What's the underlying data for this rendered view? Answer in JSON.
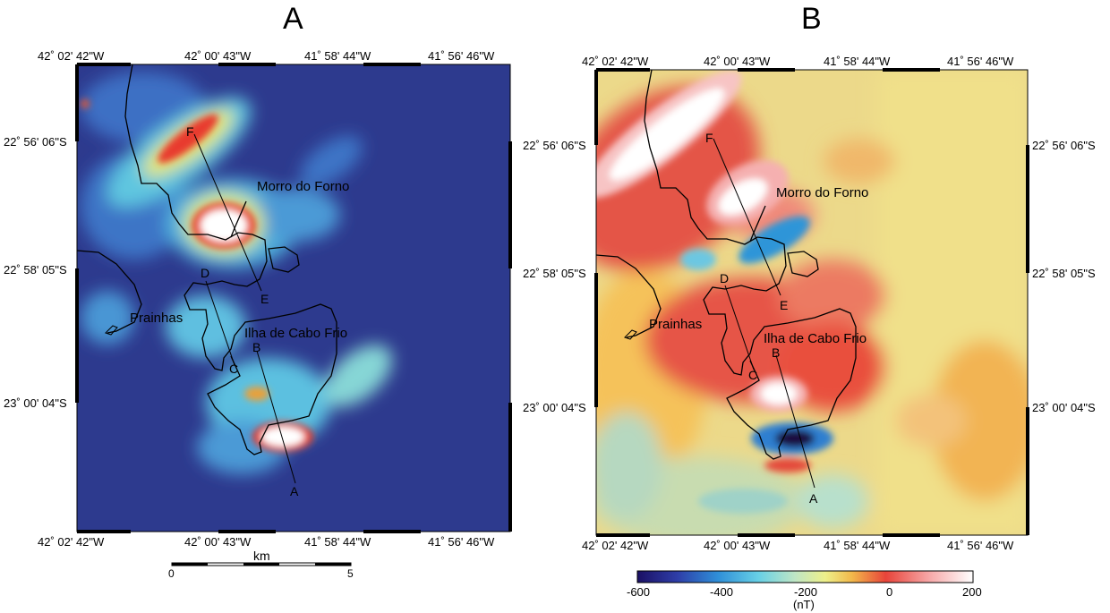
{
  "panel_a": {
    "title": "A",
    "lon_top": [
      "42˚ 02' 42\"W",
      "42˚ 00' 43\"W",
      "41˚ 58' 44\"W",
      "41˚ 56' 46\"W"
    ],
    "lon_bottom": [
      "42˚ 02' 42\"W",
      "42˚ 00' 43\"W",
      "41˚ 58' 44\"W",
      "41˚ 56' 46\"W"
    ],
    "lat_left": [
      "22˚ 56' 06\"S",
      "22˚ 58' 05\"S",
      "23˚ 00' 04\"S"
    ],
    "places": {
      "morro": "Morro do Forno",
      "prainhas": "Prainhas",
      "ilha": "Ilha de Cabo Frio"
    },
    "points": {
      "a": "A",
      "b": "B",
      "c": "C",
      "d": "D",
      "e": "E",
      "f": "F"
    },
    "scalebar": {
      "unit": "km",
      "start": "0",
      "end": "5"
    }
  },
  "panel_b": {
    "title": "B",
    "lon_top": [
      "42˚ 02' 42\"W",
      "42˚ 00' 43\"W",
      "41˚ 58' 44\"W",
      "41˚ 56' 46\"W"
    ],
    "lon_bottom": [
      "42˚ 02' 42\"W",
      "42˚ 00' 43\"W",
      "41˚ 58' 44\"W",
      "41˚ 56' 46\"W"
    ],
    "lat_left": [
      "22˚ 56' 06\"S",
      "22˚ 58' 05\"S",
      "23˚ 00' 04\"S"
    ],
    "lat_right": [
      "22˚ 56' 06\"S",
      "22˚ 58' 05\"S",
      "23˚ 00' 04\"S"
    ],
    "places": {
      "morro": "Morro do Forno",
      "prainhas": "Prainhas",
      "ilha": "Ilha de Cabo Frio"
    },
    "points": {
      "a": "A",
      "b": "B",
      "c": "C",
      "d": "D",
      "e": "E",
      "f": "F"
    },
    "colorbar": {
      "ticks": [
        "-600",
        "-400",
        "-200",
        "0",
        "200"
      ],
      "unit": "(nT)",
      "colors": [
        "#1b1064",
        "#2e3ea8",
        "#2f8fd8",
        "#67d0e6",
        "#bfe6c5",
        "#eef08a",
        "#f2b84a",
        "#e8443a",
        "#f7a8a8",
        "#ffffff"
      ]
    }
  }
}
